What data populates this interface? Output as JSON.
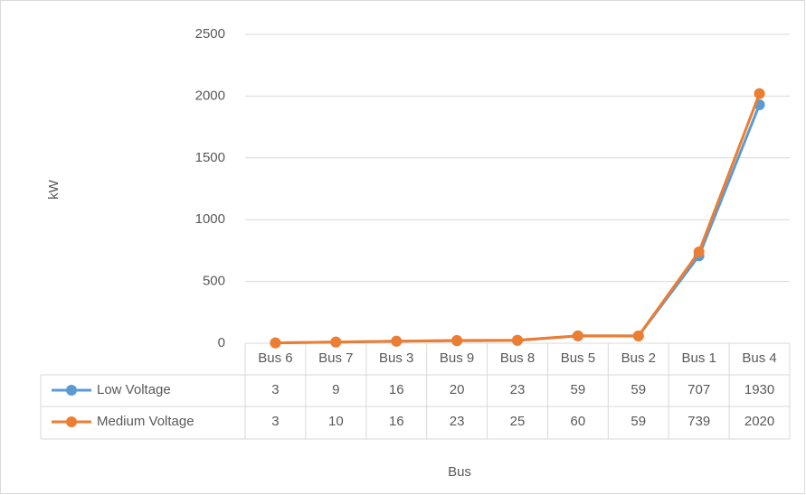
{
  "chart_data": {
    "type": "line",
    "x_label": "Bus",
    "y_label": "kW",
    "categories": [
      "Bus 6",
      "Bus 7",
      "Bus 3",
      "Bus 9",
      "Bus 8",
      "Bus 5",
      "Bus 2",
      "Bus 1",
      "Bus 4"
    ],
    "series": [
      {
        "name": "Low Voltage",
        "color": "#5b9bd5",
        "values": [
          3,
          9,
          16,
          20,
          23,
          59,
          59,
          707,
          1930
        ]
      },
      {
        "name": "Medium Voltage",
        "color": "#ed7d31",
        "values": [
          3,
          10,
          16,
          23,
          25,
          60,
          59,
          739,
          2020
        ]
      }
    ],
    "ylim": [
      0,
      2500
    ],
    "yticks": [
      0,
      500,
      1000,
      1500,
      2000,
      2500
    ],
    "grid": true
  }
}
